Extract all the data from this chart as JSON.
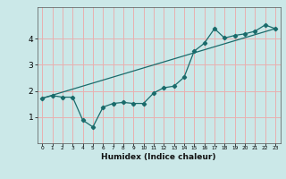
{
  "title": "",
  "xlabel": "Humidex (Indice chaleur)",
  "ylabel": "",
  "xlim": [
    -0.5,
    23.5
  ],
  "ylim": [
    0,
    5.2
  ],
  "xticks": [
    0,
    1,
    2,
    3,
    4,
    5,
    6,
    7,
    8,
    9,
    10,
    11,
    12,
    13,
    14,
    15,
    16,
    17,
    18,
    19,
    20,
    21,
    22,
    23
  ],
  "yticks": [
    1,
    2,
    3,
    4
  ],
  "bg_color": "#cbe8e8",
  "grid_color": "#e8b0b0",
  "line_color": "#1a6b6b",
  "line1_x": [
    0,
    1,
    2,
    3,
    4,
    5,
    6,
    7,
    8,
    9,
    10,
    11,
    12,
    13,
    14,
    15,
    16,
    17,
    18,
    19,
    20,
    21,
    22,
    23
  ],
  "line1_y": [
    1.72,
    1.82,
    1.76,
    1.76,
    0.88,
    0.62,
    1.38,
    1.52,
    1.56,
    1.52,
    1.52,
    1.92,
    2.12,
    2.18,
    2.52,
    3.52,
    3.82,
    4.38,
    4.02,
    4.12,
    4.18,
    4.28,
    4.52,
    4.38
  ],
  "line2_x": [
    0,
    23
  ],
  "line2_y": [
    1.72,
    4.38
  ]
}
